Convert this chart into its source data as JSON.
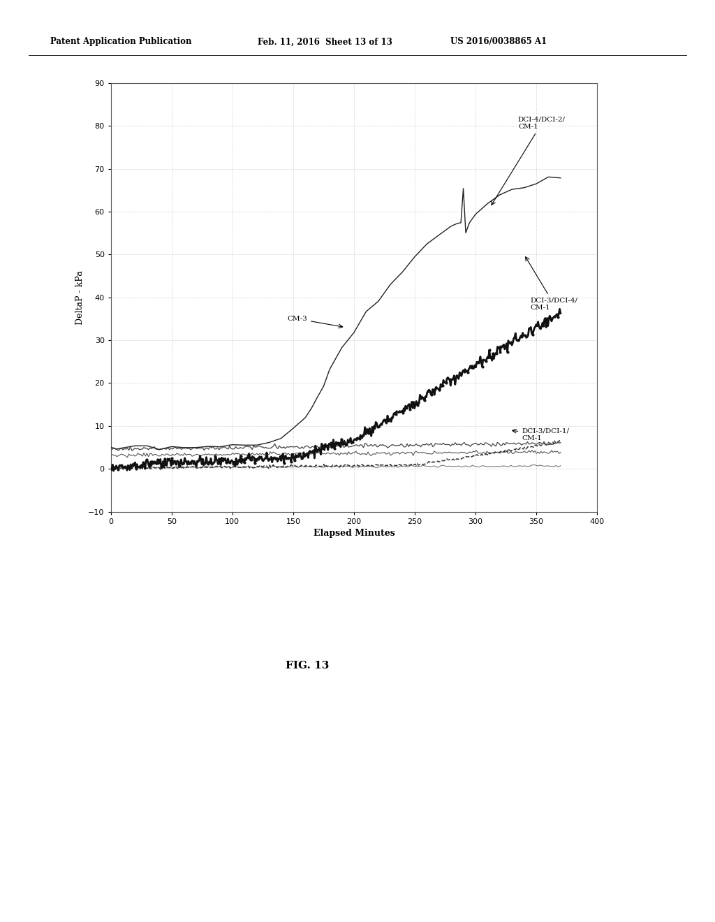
{
  "xlabel": "Elapsed Minutes",
  "ylabel": "DeltaP - kPa",
  "xlim": [
    0,
    400
  ],
  "ylim": [
    -10,
    90
  ],
  "xticks": [
    0,
    50,
    100,
    150,
    200,
    250,
    300,
    350,
    400
  ],
  "yticks": [
    -10,
    0,
    10,
    20,
    30,
    40,
    50,
    60,
    70,
    80,
    90
  ],
  "background_color": "#ffffff",
  "fig_label": "FIG. 13",
  "header_left": "Patent Application Publication",
  "header_mid": "Feb. 11, 2016  Sheet 13 of 13",
  "header_right": "US 2016/0038865 A1"
}
